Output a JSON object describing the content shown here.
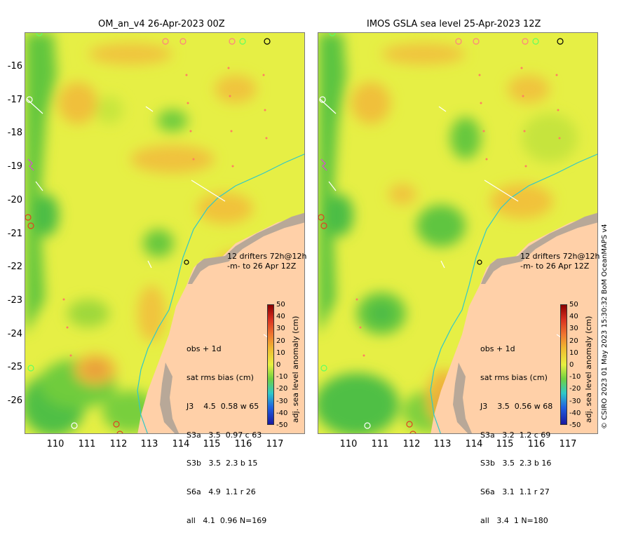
{
  "colors": {
    "background": "#ffffff",
    "land": "#ffd0a8",
    "coast": "#b8a898",
    "bathymetry": "#30c8c8",
    "field_base": "#e8f040",
    "field_low": "#60c840",
    "field_high": "#f0b830"
  },
  "left_panel": {
    "title": "OM_an_v4  26-Apr-2023 00Z",
    "drifter_note": "12 drifters 72h@12h\n-m- to 26 Apr 12Z",
    "stats": {
      "header1": "obs + 1d",
      "header2": "sat rms bias (cm)",
      "rows": [
        "J3    4.5  0.58 w 65",
        "S3a   3.5  0.97 c 63",
        "S3b   3.5  2.3 b 15",
        "S6a   4.9  1.1 r 26",
        "all   4.1  0.96 N=169"
      ]
    }
  },
  "right_panel": {
    "title": "IMOS GSLA sea level  25-Apr-2023 12Z",
    "drifter_note": "12 drifters 72h@12h\n-m- to 26 Apr 12Z",
    "stats": {
      "header1": "obs + 1d",
      "header2": "sat rms bias (cm)",
      "rows": [
        "J3    3.5  0.56 w 68",
        "S3a   3.2  1.2 c 69",
        "S3b   3.5  2.3 b 16",
        "S6a   3.1  1.1 r 27",
        "all   3.4  1 N=180"
      ]
    }
  },
  "axes": {
    "y_labels": [
      "-16",
      "-17",
      "-18",
      "-19",
      "-20",
      "-21",
      "-22",
      "-23",
      "-24",
      "-25",
      "-26"
    ],
    "x_labels": [
      "110",
      "111",
      "112",
      "113",
      "114",
      "115",
      "116",
      "117"
    ],
    "x_range": [
      109,
      118
    ],
    "y_range": [
      -27,
      -15
    ]
  },
  "colorbar": {
    "title": "adj. sea level anomaly (cm)",
    "ticks": [
      "50",
      "40",
      "30",
      "20",
      "10",
      "0",
      "-10",
      "-20",
      "-30",
      "-40",
      "-50"
    ]
  },
  "credit": "© CSIRO 2023   01 May 2023 15:30:32 BoM OceanMAPS v4"
}
